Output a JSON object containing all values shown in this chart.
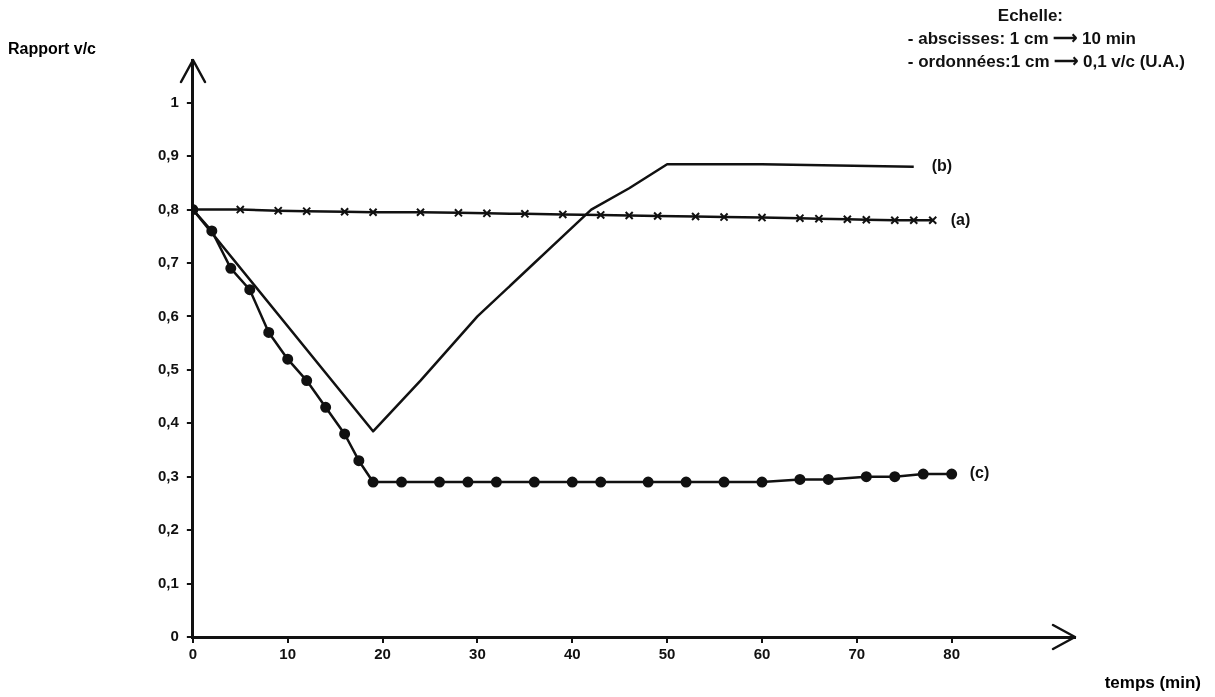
{
  "chart_data": {
    "type": "line",
    "xlabel": "temps (min)",
    "ylabel": "Rapport v/c",
    "annotations": [
      "Echelle:",
      "- abscisses: 1 cm ⟶ 10 min",
      "- ordonnées:1 cm ⟶ 0,1 v/c (U.A.)"
    ],
    "xlim": [
      0,
      93
    ],
    "xticks": [
      0,
      10,
      20,
      30,
      40,
      50,
      60,
      70,
      80
    ],
    "ylim": [
      0,
      1.08
    ],
    "yticks": [
      0,
      {
        "value": 0.1,
        "label": "0,1"
      },
      {
        "value": 0.2,
        "label": "0,2"
      },
      {
        "value": 0.3,
        "label": "0,3"
      },
      {
        "value": 0.4,
        "label": "0,4"
      },
      {
        "value": 0.5,
        "label": "0,5"
      },
      {
        "value": 0.6,
        "label": "0,6"
      },
      {
        "value": 0.7,
        "label": "0,7"
      },
      {
        "value": 0.8,
        "label": "0,8"
      },
      {
        "value": 0.9,
        "label": "0,9"
      },
      1
    ],
    "grid": false,
    "legend": false,
    "line_style": "solid",
    "series": [
      {
        "name": "(a)",
        "color": "#111111",
        "marker": "cross",
        "x": [
          0,
          5,
          9,
          12,
          16,
          19,
          24,
          28,
          31,
          35,
          39,
          43,
          46,
          49,
          53,
          56,
          60,
          64,
          66,
          69,
          71,
          74,
          76,
          78
        ],
        "values": [
          0.8,
          0.8,
          0.798,
          0.797,
          0.796,
          0.795,
          0.795,
          0.794,
          0.793,
          0.792,
          0.791,
          0.79,
          0.789,
          0.788,
          0.787,
          0.786,
          0.785,
          0.784,
          0.783,
          0.782,
          0.781,
          0.78,
          0.78,
          0.78
        ]
      },
      {
        "name": "(b)",
        "color": "#111111",
        "marker": "none",
        "x": [
          0,
          19,
          24,
          30,
          36,
          42,
          46,
          50,
          51,
          60,
          76
        ],
        "values": [
          0.8,
          0.385,
          0.48,
          0.6,
          0.7,
          0.8,
          0.84,
          0.885,
          0.885,
          0.885,
          0.88
        ]
      },
      {
        "name": "(c)",
        "color": "#111111",
        "marker": "circle",
        "x": [
          0,
          2,
          4,
          6,
          8,
          10,
          12,
          14,
          16,
          17.5,
          19,
          22,
          26,
          29,
          32,
          36,
          40,
          43,
          48,
          52,
          56,
          60,
          64,
          67,
          71,
          74,
          77,
          80
        ],
        "values": [
          0.8,
          0.76,
          0.69,
          0.65,
          0.57,
          0.52,
          0.48,
          0.43,
          0.38,
          0.33,
          0.29,
          0.29,
          0.29,
          0.29,
          0.29,
          0.29,
          0.29,
          0.29,
          0.29,
          0.29,
          0.29,
          0.29,
          0.295,
          0.295,
          0.3,
          0.3,
          0.305,
          0.305
        ]
      }
    ]
  }
}
